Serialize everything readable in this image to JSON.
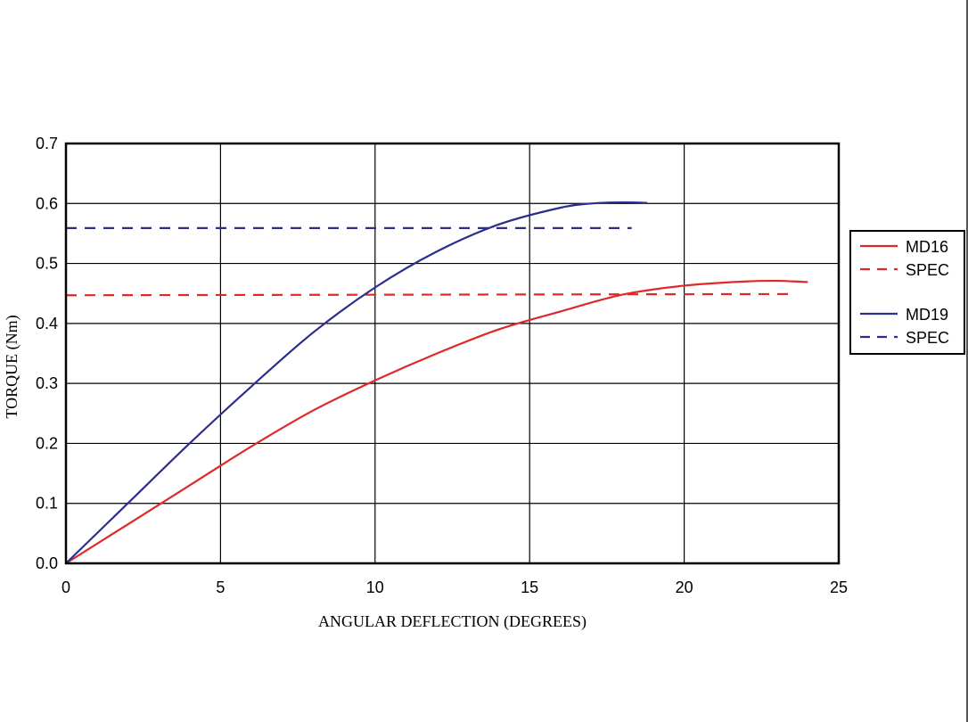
{
  "chart_data": {
    "type": "line",
    "xlabel": "ANGULAR DEFLECTION (DEGREES)",
    "ylabel": "TORQUE (Nm)",
    "xlim": [
      0,
      25
    ],
    "ylim": [
      0,
      0.7
    ],
    "xticks": [
      0,
      5,
      10,
      15,
      20,
      25
    ],
    "xtick_labels": [
      "0",
      "5",
      "10",
      "15",
      "20",
      "25"
    ],
    "yticks": [
      0,
      0.1,
      0.2,
      0.3,
      0.4,
      0.5,
      0.6,
      0.7
    ],
    "ytick_labels": [
      "0.0",
      "0.1",
      "0.2",
      "0.3",
      "0.4",
      "0.5",
      "0.6",
      "0.7"
    ],
    "grid": true,
    "legend_position": "right",
    "series": [
      {
        "name": "MD16",
        "color": "#e02828",
        "dash": "solid",
        "x": [
          0,
          2,
          4,
          6,
          8,
          10,
          12,
          14,
          16,
          18,
          20,
          22,
          23,
          24
        ],
        "y": [
          0,
          0.065,
          0.13,
          0.195,
          0.255,
          0.305,
          0.35,
          0.39,
          0.42,
          0.448,
          0.463,
          0.47,
          0.471,
          0.469
        ]
      },
      {
        "name": "SPEC",
        "color": "#e02828",
        "dash": "dashed",
        "x": [
          0,
          23.5
        ],
        "y": [
          0.447,
          0.449
        ]
      },
      {
        "name": "MD19",
        "color": "#2b2e8c",
        "dash": "solid",
        "x": [
          0,
          2,
          4,
          6,
          8,
          10,
          12,
          14,
          16,
          17,
          18,
          18.8
        ],
        "y": [
          0,
          0.1,
          0.2,
          0.295,
          0.385,
          0.46,
          0.52,
          0.565,
          0.593,
          0.6,
          0.602,
          0.601
        ]
      },
      {
        "name": "SPEC",
        "color": "#2b2e8c",
        "dash": "dashed",
        "x": [
          0,
          18.3
        ],
        "y": [
          0.559,
          0.559
        ]
      }
    ],
    "legend_groups": [
      [
        0,
        1
      ],
      [
        2,
        3
      ]
    ]
  }
}
